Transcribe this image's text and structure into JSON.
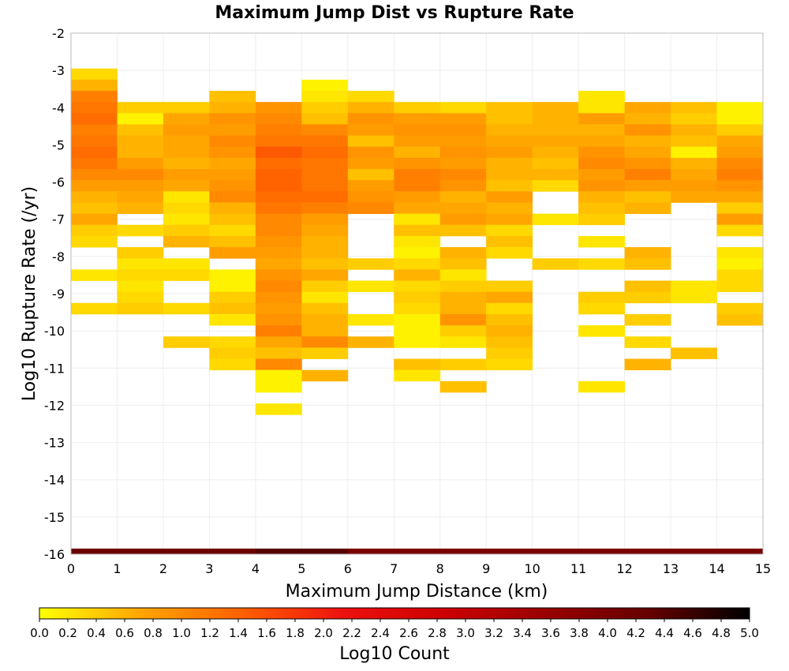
{
  "chart_data": {
    "type": "heatmap",
    "title": "Maximum Jump Dist vs Rupture Rate",
    "xlabel": "Maximum Jump Distance (km)",
    "ylabel": "Log10 Rupture Rate (/yr)",
    "xlim": [
      0,
      15
    ],
    "ylim": [
      -16,
      -2
    ],
    "x_ticks": [
      "0",
      "1",
      "2",
      "3",
      "4",
      "5",
      "6",
      "7",
      "8",
      "9",
      "10",
      "11",
      "12",
      "13",
      "14",
      "15"
    ],
    "y_ticks": [
      "-2",
      "-3",
      "-4",
      "-5",
      "-6",
      "-7",
      "-8",
      "-9",
      "-10",
      "-11",
      "-12",
      "-13",
      "-14",
      "-15",
      "-16"
    ],
    "colorbar": {
      "label": "Log10 Count",
      "range": [
        0.0,
        5.0
      ],
      "ticks": [
        "0.0",
        "0.2",
        "0.4",
        "0.6",
        "0.8",
        "1.0",
        "1.2",
        "1.4",
        "1.6",
        "1.8",
        "2.0",
        "2.2",
        "2.4",
        "2.6",
        "2.8",
        "3.0",
        "3.2",
        "3.4",
        "3.6",
        "3.8",
        "4.0",
        "4.2",
        "4.4",
        "4.6",
        "4.8",
        "5.0"
      ],
      "colormap": [
        "#ffff00",
        "#ffa500",
        "#ff6000",
        "#ee1010",
        "#cc0000",
        "#990000",
        "#660000",
        "#000000"
      ]
    },
    "y_bin_width": 0.3,
    "bottom_row_y": -16,
    "bottom_row_values": [
      4.2,
      4.2,
      4.2,
      4.2,
      4.4,
      4.4,
      4.0,
      4.0,
      4.0,
      4.0,
      4.0,
      4.0,
      4.0,
      4.0,
      4.0
    ],
    "columns": [
      {
        "x_bin": 0,
        "cells": [
          [
            -3.1,
            0.3
          ],
          [
            -3.4,
            0.6
          ],
          [
            -3.7,
            1.1
          ],
          [
            -4.0,
            1.2
          ],
          [
            -4.3,
            1.3
          ],
          [
            -4.6,
            1.1
          ],
          [
            -4.9,
            1.2
          ],
          [
            -5.2,
            1.3
          ],
          [
            -5.5,
            1.2
          ],
          [
            -5.8,
            1.0
          ],
          [
            -6.1,
            0.8
          ],
          [
            -6.4,
            0.6
          ],
          [
            -6.7,
            0.5
          ],
          [
            -7.0,
            0.7
          ],
          [
            -7.3,
            0.4
          ],
          [
            -7.6,
            0.3
          ],
          [
            -8.5,
            0.2
          ],
          [
            -9.4,
            0.3
          ]
        ]
      },
      {
        "x_bin": 1,
        "cells": [
          [
            -4.0,
            0.4
          ],
          [
            -4.3,
            0.1
          ],
          [
            -4.6,
            0.5
          ],
          [
            -4.9,
            0.6
          ],
          [
            -5.2,
            0.6
          ],
          [
            -5.5,
            0.8
          ],
          [
            -5.8,
            1.0
          ],
          [
            -6.1,
            0.8
          ],
          [
            -6.4,
            0.7
          ],
          [
            -6.7,
            0.6
          ],
          [
            -7.3,
            0.3
          ],
          [
            -7.9,
            0.4
          ],
          [
            -8.2,
            0.2
          ],
          [
            -8.5,
            0.3
          ],
          [
            -8.8,
            0.2
          ],
          [
            -9.1,
            0.3
          ],
          [
            -9.4,
            0.4
          ]
        ]
      },
      {
        "x_bin": 2,
        "cells": [
          [
            -4.0,
            0.4
          ],
          [
            -4.3,
            0.7
          ],
          [
            -4.6,
            0.8
          ],
          [
            -4.9,
            0.7
          ],
          [
            -5.2,
            0.7
          ],
          [
            -5.5,
            0.6
          ],
          [
            -5.8,
            0.8
          ],
          [
            -6.1,
            0.7
          ],
          [
            -6.4,
            0.2
          ],
          [
            -6.7,
            0.3
          ],
          [
            -7.0,
            0.2
          ],
          [
            -7.3,
            0.4
          ],
          [
            -7.6,
            0.6
          ],
          [
            -8.2,
            0.2
          ],
          [
            -8.5,
            0.3
          ],
          [
            -9.4,
            0.3
          ],
          [
            -10.3,
            0.4
          ]
        ]
      },
      {
        "x_bin": 3,
        "cells": [
          [
            -3.7,
            0.5
          ],
          [
            -4.0,
            0.6
          ],
          [
            -4.3,
            0.9
          ],
          [
            -4.6,
            0.8
          ],
          [
            -4.9,
            1.0
          ],
          [
            -5.2,
            0.9
          ],
          [
            -5.5,
            0.7
          ],
          [
            -5.8,
            0.8
          ],
          [
            -6.1,
            0.9
          ],
          [
            -6.4,
            1.0
          ],
          [
            -6.7,
            0.6
          ],
          [
            -7.0,
            0.5
          ],
          [
            -7.3,
            0.3
          ],
          [
            -7.6,
            0.5
          ],
          [
            -7.9,
            0.8
          ],
          [
            -8.5,
            0.1
          ],
          [
            -8.8,
            0.1
          ],
          [
            -9.1,
            0.4
          ],
          [
            -9.4,
            0.5
          ],
          [
            -9.7,
            0.2
          ],
          [
            -10.3,
            0.3
          ],
          [
            -10.6,
            0.4
          ],
          [
            -10.9,
            0.3
          ]
        ]
      },
      {
        "x_bin": 4,
        "cells": [
          [
            -4.0,
            0.9
          ],
          [
            -4.3,
            1.0
          ],
          [
            -4.6,
            1.1
          ],
          [
            -4.9,
            1.2
          ],
          [
            -5.2,
            1.5
          ],
          [
            -5.5,
            1.3
          ],
          [
            -5.8,
            1.4
          ],
          [
            -6.1,
            1.4
          ],
          [
            -6.4,
            1.3
          ],
          [
            -6.7,
            1.2
          ],
          [
            -7.0,
            1.0
          ],
          [
            -7.3,
            1.0
          ],
          [
            -7.6,
            0.9
          ],
          [
            -7.9,
            0.8
          ],
          [
            -8.2,
            0.7
          ],
          [
            -8.5,
            0.9
          ],
          [
            -8.8,
            1.0
          ],
          [
            -9.1,
            0.9
          ],
          [
            -9.4,
            0.8
          ],
          [
            -9.7,
            0.9
          ],
          [
            -10.0,
            1.1
          ],
          [
            -10.3,
            0.7
          ],
          [
            -10.6,
            0.5
          ],
          [
            -10.9,
            1.0
          ],
          [
            -11.2,
            0.1
          ],
          [
            -11.5,
            0.1
          ],
          [
            -12.1,
            0.2
          ]
        ]
      },
      {
        "x_bin": 5,
        "cells": [
          [
            -3.4,
            0.1
          ],
          [
            -3.7,
            0.2
          ],
          [
            -4.0,
            0.4
          ],
          [
            -4.3,
            0.5
          ],
          [
            -4.6,
            1.0
          ],
          [
            -4.9,
            1.2
          ],
          [
            -5.2,
            1.3
          ],
          [
            -5.5,
            1.2
          ],
          [
            -5.8,
            1.2
          ],
          [
            -6.1,
            1.2
          ],
          [
            -6.4,
            1.3
          ],
          [
            -6.7,
            1.1
          ],
          [
            -7.0,
            0.8
          ],
          [
            -7.3,
            0.7
          ],
          [
            -7.6,
            0.6
          ],
          [
            -7.9,
            0.6
          ],
          [
            -8.2,
            0.5
          ],
          [
            -8.5,
            0.7
          ],
          [
            -8.8,
            0.4
          ],
          [
            -9.1,
            0.2
          ],
          [
            -9.4,
            0.5
          ],
          [
            -9.7,
            0.6
          ],
          [
            -10.0,
            0.6
          ],
          [
            -10.3,
            1.0
          ],
          [
            -10.6,
            0.4
          ],
          [
            -11.2,
            0.6
          ]
        ]
      },
      {
        "x_bin": 6,
        "cells": [
          [
            -3.7,
            0.3
          ],
          [
            -4.0,
            0.6
          ],
          [
            -4.3,
            0.9
          ],
          [
            -4.6,
            0.8
          ],
          [
            -4.9,
            0.5
          ],
          [
            -5.2,
            0.9
          ],
          [
            -5.5,
            0.8
          ],
          [
            -5.8,
            0.5
          ],
          [
            -6.1,
            0.8
          ],
          [
            -6.4,
            0.9
          ],
          [
            -6.7,
            1.0
          ],
          [
            -8.2,
            0.4
          ],
          [
            -8.8,
            0.2
          ],
          [
            -9.7,
            0.2
          ],
          [
            -10.3,
            0.6
          ]
        ]
      },
      {
        "x_bin": 7,
        "cells": [
          [
            -4.0,
            0.4
          ],
          [
            -4.3,
            0.8
          ],
          [
            -4.6,
            0.9
          ],
          [
            -4.9,
            0.8
          ],
          [
            -5.2,
            0.6
          ],
          [
            -5.5,
            0.9
          ],
          [
            -5.8,
            1.1
          ],
          [
            -6.1,
            1.1
          ],
          [
            -6.4,
            0.8
          ],
          [
            -6.7,
            0.7
          ],
          [
            -7.0,
            0.2
          ],
          [
            -7.3,
            0.5
          ],
          [
            -7.6,
            0.2
          ],
          [
            -7.9,
            0.1
          ],
          [
            -8.2,
            0.3
          ],
          [
            -8.5,
            0.6
          ],
          [
            -8.8,
            0.3
          ],
          [
            -9.1,
            0.4
          ],
          [
            -9.4,
            0.3
          ],
          [
            -9.7,
            0.1
          ],
          [
            -10.0,
            0.1
          ],
          [
            -10.3,
            0.1
          ],
          [
            -10.9,
            0.5
          ],
          [
            -11.2,
            0.2
          ]
        ]
      },
      {
        "x_bin": 8,
        "cells": [
          [
            -4.0,
            0.3
          ],
          [
            -4.3,
            0.8
          ],
          [
            -4.6,
            0.9
          ],
          [
            -4.9,
            0.8
          ],
          [
            -5.2,
            0.9
          ],
          [
            -5.5,
            0.8
          ],
          [
            -5.8,
            1.0
          ],
          [
            -6.1,
            0.9
          ],
          [
            -6.4,
            0.6
          ],
          [
            -6.7,
            0.7
          ],
          [
            -7.0,
            0.8
          ],
          [
            -7.3,
            0.5
          ],
          [
            -7.9,
            0.6
          ],
          [
            -8.2,
            0.5
          ],
          [
            -8.5,
            0.2
          ],
          [
            -8.8,
            0.4
          ],
          [
            -9.1,
            0.6
          ],
          [
            -9.4,
            0.6
          ],
          [
            -9.7,
            0.9
          ],
          [
            -10.0,
            0.4
          ],
          [
            -10.3,
            0.2
          ],
          [
            -10.9,
            0.4
          ],
          [
            -11.5,
            0.5
          ]
        ]
      },
      {
        "x_bin": 9,
        "cells": [
          [
            -4.0,
            0.5
          ],
          [
            -4.3,
            0.5
          ],
          [
            -4.6,
            0.6
          ],
          [
            -4.9,
            0.7
          ],
          [
            -5.2,
            0.8
          ],
          [
            -5.5,
            0.6
          ],
          [
            -5.8,
            0.6
          ],
          [
            -6.1,
            0.5
          ],
          [
            -6.4,
            0.8
          ],
          [
            -6.7,
            0.6
          ],
          [
            -7.0,
            0.7
          ],
          [
            -7.3,
            0.3
          ],
          [
            -7.6,
            0.5
          ],
          [
            -7.9,
            0.3
          ],
          [
            -8.8,
            0.4
          ],
          [
            -9.1,
            0.7
          ],
          [
            -9.4,
            0.3
          ],
          [
            -9.7,
            0.5
          ],
          [
            -10.0,
            0.6
          ],
          [
            -10.3,
            0.5
          ],
          [
            -10.6,
            0.4
          ],
          [
            -10.9,
            0.3
          ]
        ]
      },
      {
        "x_bin": 10,
        "cells": [
          [
            -4.0,
            0.6
          ],
          [
            -4.3,
            0.6
          ],
          [
            -4.6,
            0.6
          ],
          [
            -4.9,
            0.7
          ],
          [
            -5.2,
            0.6
          ],
          [
            -5.5,
            0.5
          ],
          [
            -5.8,
            0.6
          ],
          [
            -6.1,
            0.3
          ],
          [
            -7.0,
            0.2
          ],
          [
            -8.2,
            0.4
          ]
        ]
      },
      {
        "x_bin": 11,
        "cells": [
          [
            -3.7,
            0.2
          ],
          [
            -4.0,
            0.2
          ],
          [
            -4.3,
            0.8
          ],
          [
            -4.6,
            0.6
          ],
          [
            -4.9,
            0.7
          ],
          [
            -5.2,
            0.9
          ],
          [
            -5.5,
            1.0
          ],
          [
            -5.8,
            0.8
          ],
          [
            -6.1,
            0.9
          ],
          [
            -6.4,
            0.6
          ],
          [
            -6.7,
            0.5
          ],
          [
            -7.0,
            0.4
          ],
          [
            -7.6,
            0.2
          ],
          [
            -8.2,
            0.3
          ],
          [
            -9.1,
            0.4
          ],
          [
            -9.4,
            0.3
          ],
          [
            -10.0,
            0.2
          ],
          [
            -11.5,
            0.2
          ]
        ]
      },
      {
        "x_bin": 12,
        "cells": [
          [
            -4.0,
            0.7
          ],
          [
            -4.3,
            0.6
          ],
          [
            -4.6,
            0.9
          ],
          [
            -4.9,
            0.6
          ],
          [
            -5.2,
            0.7
          ],
          [
            -5.5,
            0.9
          ],
          [
            -5.8,
            1.1
          ],
          [
            -6.1,
            0.8
          ],
          [
            -6.4,
            0.5
          ],
          [
            -6.7,
            0.6
          ],
          [
            -7.9,
            0.6
          ],
          [
            -8.2,
            0.5
          ],
          [
            -8.8,
            0.5
          ],
          [
            -9.1,
            0.4
          ],
          [
            -9.7,
            0.4
          ],
          [
            -10.3,
            0.3
          ],
          [
            -10.9,
            0.6
          ]
        ]
      },
      {
        "x_bin": 13,
        "cells": [
          [
            -4.0,
            0.5
          ],
          [
            -4.3,
            0.4
          ],
          [
            -4.6,
            0.6
          ],
          [
            -4.9,
            0.5
          ],
          [
            -5.2,
            0.1
          ],
          [
            -5.5,
            0.6
          ],
          [
            -5.8,
            0.7
          ],
          [
            -6.1,
            0.8
          ],
          [
            -6.4,
            0.7
          ],
          [
            -8.8,
            0.2
          ],
          [
            -9.1,
            0.2
          ],
          [
            -10.6,
            0.5
          ]
        ]
      },
      {
        "x_bin": 14,
        "cells": [
          [
            -4.0,
            0.1
          ],
          [
            -4.3,
            0.1
          ],
          [
            -4.6,
            0.4
          ],
          [
            -4.9,
            0.7
          ],
          [
            -5.2,
            0.8
          ],
          [
            -5.5,
            1.0
          ],
          [
            -5.8,
            1.1
          ],
          [
            -6.1,
            0.9
          ],
          [
            -6.4,
            0.7
          ],
          [
            -6.7,
            0.4
          ],
          [
            -7.0,
            0.8
          ],
          [
            -7.3,
            0.3
          ],
          [
            -7.9,
            0.2
          ],
          [
            -8.2,
            0.1
          ],
          [
            -8.5,
            0.3
          ],
          [
            -8.8,
            0.3
          ],
          [
            -9.4,
            0.4
          ],
          [
            -9.7,
            0.5
          ]
        ]
      }
    ]
  }
}
